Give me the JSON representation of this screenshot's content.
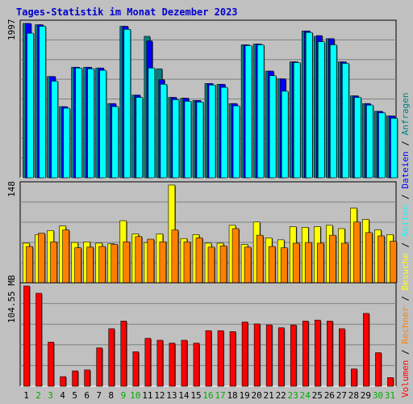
{
  "title": "Tages-Statistik im Monat Dezember 2023",
  "colors": {
    "title": "#0000cc",
    "background": "#c0c0c0",
    "anfragen": "#008080",
    "dateien": "#0000ff",
    "seiten": "#00ffff",
    "besuche": "#ffff00",
    "rechner": "#ff8000",
    "volumen": "#ff0000",
    "weekend_label": "#00aa00"
  },
  "chart_data": [
    {
      "type": "bar",
      "panel": "top",
      "ymax_label": "1997",
      "ylim": [
        0,
        1997
      ],
      "grid": true,
      "categories": [
        "1",
        "2",
        "3",
        "4",
        "5",
        "6",
        "7",
        "8",
        "9",
        "10",
        "11",
        "12",
        "13",
        "14",
        "15",
        "16",
        "17",
        "18",
        "19",
        "20",
        "21",
        "22",
        "23",
        "24",
        "25",
        "26",
        "27",
        "28",
        "29",
        "30",
        "31"
      ],
      "series": [
        {
          "name": "Anfragen",
          "values": [
            1997,
            1980,
            1310,
            920,
            1430,
            1430,
            1420,
            960,
            1960,
            1070,
            1830,
            1410,
            1040,
            1030,
            1000,
            1220,
            1210,
            960,
            1720,
            1730,
            1380,
            1280,
            1500,
            1900,
            1830,
            1800,
            1500,
            1060,
            960,
            860,
            800
          ]
        },
        {
          "name": "Dateien",
          "values": [
            1997,
            1980,
            1310,
            920,
            1430,
            1430,
            1420,
            960,
            1960,
            1070,
            1770,
            1270,
            1040,
            1030,
            1000,
            1220,
            1210,
            960,
            1720,
            1730,
            1380,
            1280,
            1500,
            1900,
            1840,
            1800,
            1500,
            1060,
            960,
            860,
            800
          ]
        },
        {
          "name": "Seiten",
          "values": [
            1870,
            1960,
            1250,
            900,
            1420,
            1410,
            1390,
            920,
            1920,
            1040,
            1420,
            1210,
            1010,
            990,
            980,
            1200,
            1170,
            930,
            1710,
            1720,
            1320,
            1120,
            1490,
            1880,
            1760,
            1720,
            1480,
            1040,
            940,
            840,
            770
          ]
        }
      ]
    },
    {
      "type": "bar",
      "panel": "middle",
      "ymax_label": "148",
      "ylim": [
        0,
        148
      ],
      "grid": true,
      "categories": [
        "1",
        "2",
        "3",
        "4",
        "5",
        "6",
        "7",
        "8",
        "9",
        "10",
        "11",
        "12",
        "13",
        "14",
        "15",
        "16",
        "17",
        "18",
        "19",
        "20",
        "21",
        "22",
        "23",
        "24",
        "25",
        "26",
        "27",
        "28",
        "29",
        "30",
        "31"
      ],
      "series": [
        {
          "name": "Besuche",
          "values": [
            60,
            73,
            79,
            86,
            61,
            62,
            60,
            59,
            94,
            74,
            61,
            74,
            148,
            67,
            73,
            60,
            60,
            87,
            58,
            92,
            68,
            65,
            85,
            84,
            85,
            87,
            82,
            113,
            96,
            80,
            73
          ]
        },
        {
          "name": "Rechner",
          "values": [
            55,
            75,
            62,
            80,
            53,
            54,
            55,
            58,
            62,
            70,
            66,
            62,
            80,
            62,
            68,
            54,
            56,
            82,
            54,
            72,
            55,
            53,
            60,
            61,
            60,
            72,
            60,
            92,
            76,
            71,
            63
          ]
        }
      ]
    },
    {
      "type": "bar",
      "panel": "bottom",
      "ymax_label": "104.55 MB",
      "ylim": [
        0,
        104.55
      ],
      "grid": true,
      "categories": [
        "1",
        "2",
        "3",
        "4",
        "5",
        "6",
        "7",
        "8",
        "9",
        "10",
        "11",
        "12",
        "13",
        "14",
        "15",
        "16",
        "17",
        "18",
        "19",
        "20",
        "21",
        "22",
        "23",
        "24",
        "25",
        "26",
        "27",
        "28",
        "29",
        "30",
        "31"
      ],
      "series": [
        {
          "name": "Volumen",
          "values": [
            104.55,
            97,
            46,
            10,
            16,
            17,
            40,
            60,
            68,
            36,
            50,
            48,
            45,
            48,
            45,
            58,
            58,
            57,
            67,
            65,
            64,
            61,
            64,
            68,
            69,
            68,
            60,
            18,
            76,
            35,
            9
          ]
        }
      ]
    }
  ],
  "legend": {
    "sep": "/",
    "anfragen": "Anfragen",
    "dateien": "Dateien",
    "seiten": "Seiten",
    "besuche": "Besuche",
    "rechner": "Rechner",
    "volumen": "Volumen"
  },
  "weekend_days": [
    "2",
    "3",
    "9",
    "10",
    "16",
    "17",
    "23",
    "24",
    "30",
    "31"
  ]
}
